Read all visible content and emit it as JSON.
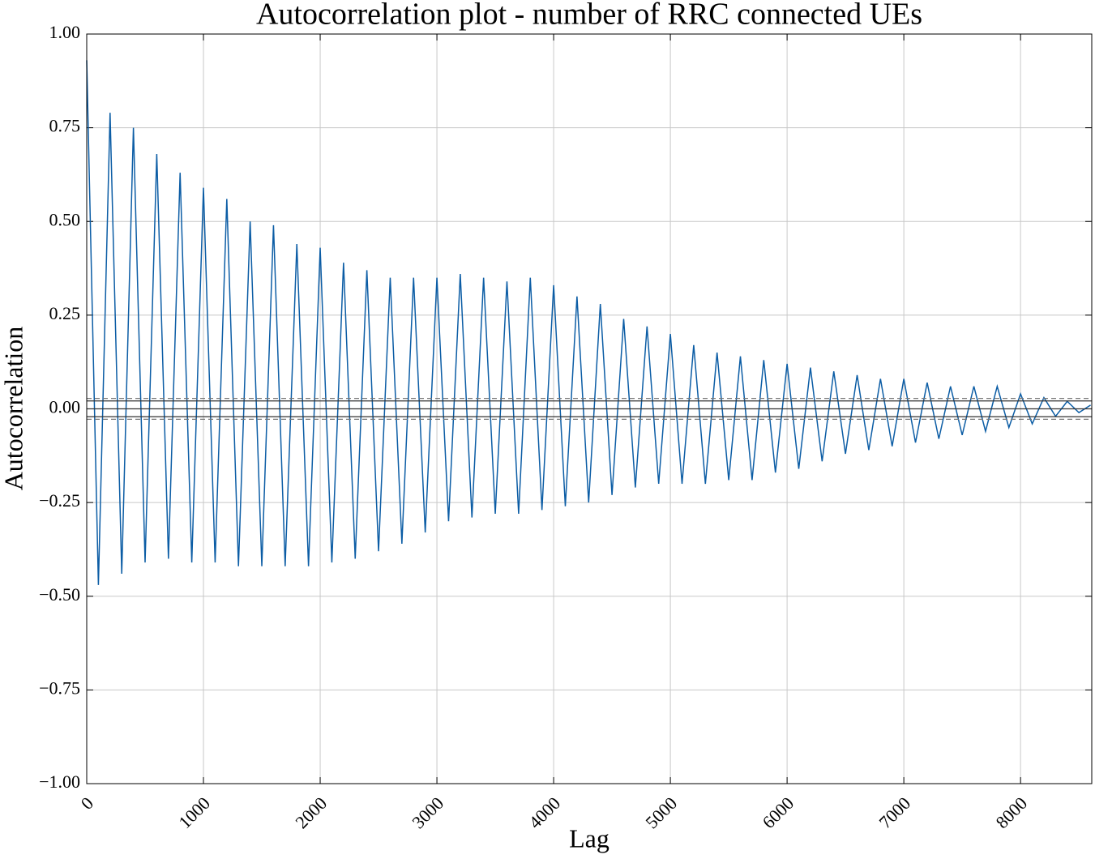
{
  "chart_data": {
    "type": "line",
    "title": "Autocorrelation plot - number of RRC connected UEs",
    "xlabel": "Lag",
    "ylabel": "Autocorrelation",
    "x": [
      0,
      100,
      200,
      300,
      400,
      500,
      600,
      700,
      800,
      900,
      1000,
      1100,
      1200,
      1300,
      1400,
      1500,
      1600,
      1700,
      1800,
      1900,
      2000,
      2100,
      2200,
      2300,
      2400,
      2500,
      2600,
      2700,
      2800,
      2900,
      3000,
      3100,
      3200,
      3300,
      3400,
      3500,
      3600,
      3700,
      3800,
      3900,
      4000,
      4100,
      4200,
      4300,
      4400,
      4500,
      4600,
      4700,
      4800,
      4900,
      5000,
      5100,
      5200,
      5300,
      5400,
      5500,
      5600,
      5700,
      5800,
      5900,
      6000,
      6100,
      6200,
      6300,
      6400,
      6500,
      6600,
      6700,
      6800,
      6900,
      7000,
      7100,
      7200,
      7300,
      7400,
      7500,
      7600,
      7700,
      7800,
      7900,
      8000,
      8100,
      8200,
      8300,
      8400,
      8500,
      8600
    ],
    "series": [
      {
        "color": "#0c5da5",
        "values": [
          0.93,
          -0.47,
          0.79,
          -0.44,
          0.75,
          -0.41,
          0.68,
          -0.4,
          0.63,
          -0.41,
          0.59,
          -0.41,
          0.56,
          -0.42,
          0.5,
          -0.42,
          0.49,
          -0.42,
          0.44,
          -0.42,
          0.43,
          -0.41,
          0.39,
          -0.4,
          0.37,
          -0.38,
          0.35,
          -0.36,
          0.35,
          -0.33,
          0.35,
          -0.3,
          0.36,
          -0.29,
          0.35,
          -0.28,
          0.34,
          -0.28,
          0.35,
          -0.27,
          0.33,
          -0.26,
          0.3,
          -0.25,
          0.28,
          -0.23,
          0.24,
          -0.21,
          0.22,
          -0.2,
          0.2,
          -0.2,
          0.17,
          -0.2,
          0.15,
          -0.19,
          0.14,
          -0.19,
          0.13,
          -0.17,
          0.12,
          -0.16,
          0.11,
          -0.14,
          0.1,
          -0.12,
          0.09,
          -0.11,
          0.08,
          -0.1,
          0.08,
          -0.09,
          0.07,
          -0.08,
          0.06,
          -0.07,
          0.06,
          -0.06,
          0.06,
          -0.05,
          0.04,
          -0.04,
          0.03,
          -0.02,
          0.02,
          -0.01,
          0.01
        ]
      }
    ],
    "reference_lines": [
      {
        "y": 0.0278,
        "dashed": true
      },
      {
        "y": 0.0211,
        "dashed": false
      },
      {
        "y": 0,
        "dashed": false
      },
      {
        "y": -0.0211,
        "dashed": false
      },
      {
        "y": -0.0278,
        "dashed": true
      }
    ],
    "xlim": [
      0,
      8610
    ],
    "ylim": [
      -1,
      1
    ],
    "xticks": [
      0,
      1000,
      2000,
      3000,
      4000,
      5000,
      6000,
      7000,
      8000
    ],
    "yticks": [
      {
        "value": -1,
        "label": "−1.00"
      },
      {
        "value": -0.75,
        "label": "−0.75"
      },
      {
        "value": -0.5,
        "label": "−0.50"
      },
      {
        "value": -0.25,
        "label": "−0.25"
      },
      {
        "value": 0,
        "label": "0.00"
      },
      {
        "value": 0.25,
        "label": "0.25"
      },
      {
        "value": 0.5,
        "label": "0.50"
      },
      {
        "value": 0.75,
        "label": "0.75"
      },
      {
        "value": 1,
        "label": "1.00"
      }
    ],
    "grid": true
  }
}
